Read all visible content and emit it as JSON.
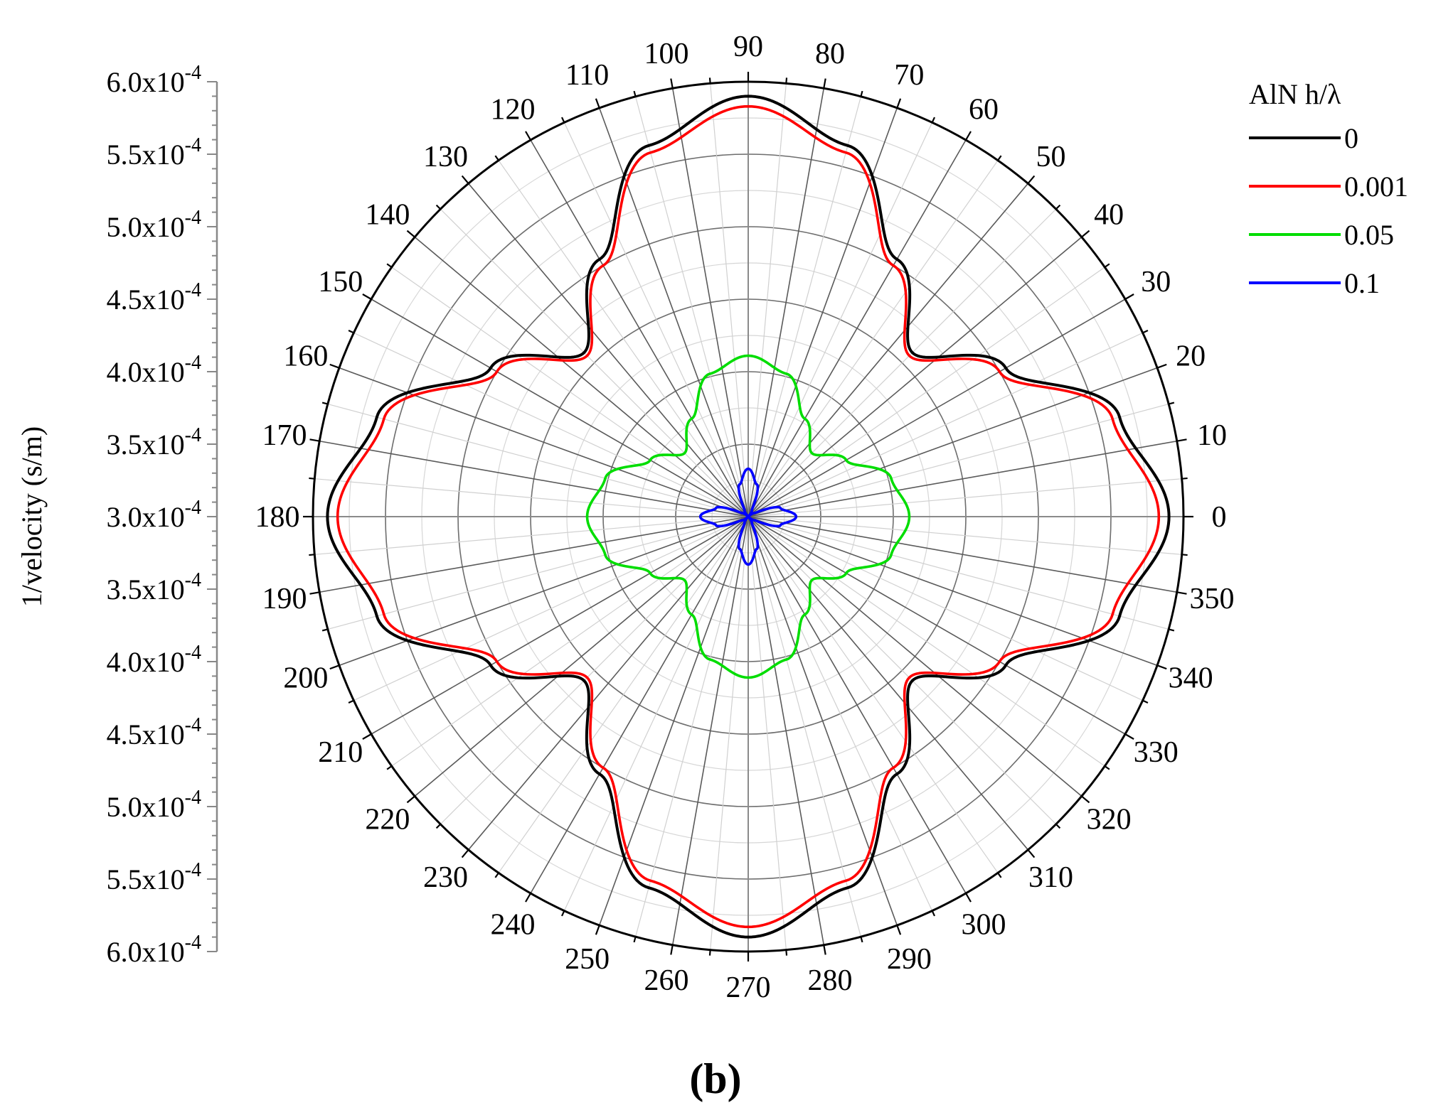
{
  "panel_label": "(b)",
  "chart_data": {
    "type": "polar",
    "ylabel": "1/velocity (s/m)",
    "radial_range": [
      0.0003,
      0.0006
    ],
    "radial_ticks": [
      {
        "mantissa": "6.0",
        "value": 0.0006,
        "side": "upper"
      },
      {
        "mantissa": "5.5",
        "value": 0.00055,
        "side": "upper"
      },
      {
        "mantissa": "5.0",
        "value": 0.0005,
        "side": "upper"
      },
      {
        "mantissa": "4.5",
        "value": 0.00045,
        "side": "upper"
      },
      {
        "mantissa": "4.0",
        "value": 0.0004,
        "side": "upper"
      },
      {
        "mantissa": "3.5",
        "value": 0.00035,
        "side": "upper"
      },
      {
        "mantissa": "3.0",
        "value": 0.0003,
        "side": "center"
      },
      {
        "mantissa": "3.5",
        "value": 0.00035,
        "side": "lower"
      },
      {
        "mantissa": "4.0",
        "value": 0.0004,
        "side": "lower"
      },
      {
        "mantissa": "4.5",
        "value": 0.00045,
        "side": "lower"
      },
      {
        "mantissa": "5.0",
        "value": 0.0005,
        "side": "lower"
      },
      {
        "mantissa": "5.5",
        "value": 0.00055,
        "side": "lower"
      },
      {
        "mantissa": "6.0",
        "value": 0.0006,
        "side": "lower"
      }
    ],
    "tick_multiplier": "x10",
    "tick_exponent": "-4",
    "angular_ticks": [
      "0",
      "10",
      "20",
      "30",
      "40",
      "50",
      "60",
      "70",
      "80",
      "90",
      "100",
      "110",
      "120",
      "130",
      "140",
      "150",
      "160",
      "170",
      "180",
      "190",
      "200",
      "210",
      "220",
      "230",
      "240",
      "250",
      "260",
      "270",
      "280",
      "290",
      "300",
      "310",
      "320",
      "330",
      "340",
      "350"
    ],
    "angle_unit": "degrees",
    "grid": true,
    "legend": {
      "title": "AlN h/λ",
      "placement": "top-right"
    },
    "series": [
      {
        "name": "0",
        "color": "#000000",
        "angle": [
          0,
          15,
          30,
          45,
          60,
          75,
          90
        ],
        "r": [
          0.00059,
          0.000565,
          0.000505,
          0.00046,
          0.000505,
          0.000565,
          0.00059
        ]
      },
      {
        "name": "0.001",
        "color": "#ff0000",
        "angle": [
          0,
          15,
          30,
          45,
          60,
          75,
          90
        ],
        "r": [
          0.000583,
          0.00056,
          0.0005,
          0.000457,
          0.0005,
          0.00056,
          0.000583
        ]
      },
      {
        "name": "0.05",
        "color": "#00dd00",
        "angle": [
          0,
          15,
          30,
          45,
          60,
          75,
          90
        ],
        "r": [
          0.000411,
          0.000402,
          0.000378,
          0.000362,
          0.000378,
          0.000402,
          0.000411
        ]
      },
      {
        "name": "0.1",
        "color": "#0000ff",
        "angle": [
          0,
          15,
          30,
          45,
          60,
          75,
          90
        ],
        "r": [
          0.000333,
          0.000323,
          0.000305,
          0.0003,
          0.000305,
          0.000323,
          0.000333
        ]
      }
    ],
    "symmetry": "four-fold (values repeat every 90 degrees, mirrored about 45)"
  }
}
